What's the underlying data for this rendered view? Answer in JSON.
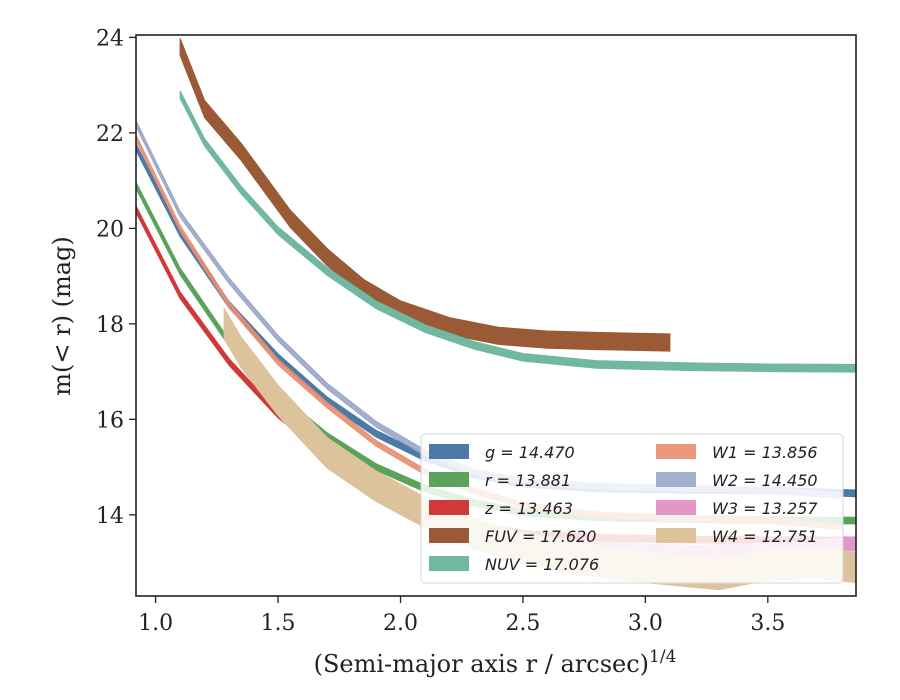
{
  "chart_data": {
    "type": "line",
    "xlabel": "(Semi-major axis r / arcsec)",
    "xlabel_sup": "1/4",
    "ylabel": "m(< r) (mag)",
    "xlim": [
      0.92,
      3.86
    ],
    "ylim": [
      24.05,
      12.3
    ],
    "y_inverted": true,
    "xticks": [
      "1.0",
      "1.5",
      "2.0",
      "2.5",
      "3.0",
      "3.5"
    ],
    "yticks": [
      "14",
      "16",
      "18",
      "20",
      "22",
      "24"
    ],
    "xtick_values": [
      1.0,
      1.5,
      2.0,
      2.5,
      3.0,
      3.5
    ],
    "ytick_values": [
      14,
      16,
      18,
      20,
      22,
      24
    ],
    "grid": false,
    "legend_position": "lower-right",
    "series": [
      {
        "key": "g",
        "label": "g = 14.470",
        "color": "#4c7aa8",
        "band": 0.07,
        "opacity": 1.0,
        "x": [
          0.92,
          1.1,
          1.3,
          1.5,
          1.7,
          1.9,
          2.1,
          2.3,
          2.5,
          2.8,
          3.2,
          3.5,
          3.86
        ],
        "y": [
          21.7,
          19.9,
          18.4,
          17.3,
          16.4,
          15.7,
          15.2,
          14.85,
          14.65,
          14.55,
          14.52,
          14.51,
          14.45
        ]
      },
      {
        "key": "r",
        "label": "r = 13.881",
        "color": "#5ba35a",
        "band": 0.07,
        "opacity": 1.0,
        "x": [
          0.92,
          1.1,
          1.3,
          1.5,
          1.7,
          1.9,
          2.1,
          2.3,
          2.5,
          2.8,
          3.2,
          3.5,
          3.86
        ],
        "y": [
          20.9,
          19.1,
          17.6,
          16.5,
          15.65,
          15.0,
          14.55,
          14.25,
          14.05,
          13.95,
          13.91,
          13.89,
          13.88
        ]
      },
      {
        "key": "z",
        "label": "z = 13.463",
        "color": "#d1383a",
        "band": 0.07,
        "opacity": 1.0,
        "x": [
          0.92,
          1.1,
          1.3,
          1.5,
          1.7,
          1.9,
          2.1,
          2.3,
          2.5,
          2.8,
          3.2,
          3.5,
          3.86
        ],
        "y": [
          20.4,
          18.6,
          17.2,
          16.1,
          15.3,
          14.65,
          14.15,
          13.8,
          13.6,
          13.52,
          13.48,
          13.47,
          13.46
        ]
      },
      {
        "key": "FUV",
        "label": "FUV = 17.620",
        "color": "#9a5a35",
        "band": 0.18,
        "opacity": 1.0,
        "x": [
          1.1,
          1.2,
          1.35,
          1.55,
          1.7,
          1.85,
          2.0,
          2.2,
          2.4,
          2.6,
          2.8,
          3.0,
          3.1
        ],
        "y": [
          23.8,
          22.5,
          21.6,
          20.2,
          19.4,
          18.75,
          18.3,
          17.95,
          17.75,
          17.67,
          17.64,
          17.62,
          17.61
        ]
      },
      {
        "key": "NUV",
        "label": "NUV = 17.076",
        "color": "#72b8a1",
        "band": 0.08,
        "opacity": 1.0,
        "x": [
          1.1,
          1.2,
          1.35,
          1.5,
          1.7,
          1.9,
          2.1,
          2.3,
          2.5,
          2.8,
          3.2,
          3.5,
          3.86
        ],
        "y": [
          22.8,
          21.8,
          20.8,
          19.95,
          19.1,
          18.4,
          17.9,
          17.55,
          17.3,
          17.15,
          17.1,
          17.08,
          17.07
        ]
      },
      {
        "key": "W1",
        "label": "W1 = 13.856",
        "color": "#e88e6f",
        "band": 0.06,
        "opacity": 0.9,
        "x": [
          0.92,
          1.1,
          1.3,
          1.5,
          1.7,
          1.9,
          2.1,
          2.3,
          2.5,
          2.8,
          3.2,
          3.5,
          3.8
        ],
        "y": [
          21.9,
          20.0,
          18.4,
          17.2,
          16.3,
          15.5,
          14.9,
          14.5,
          14.2,
          14.0,
          13.92,
          13.88,
          13.75
        ]
      },
      {
        "key": "W2",
        "label": "W2 = 14.450",
        "color": "#98a6c9",
        "band": 0.06,
        "opacity": 0.9,
        "x": [
          0.92,
          1.1,
          1.3,
          1.5,
          1.7,
          1.9,
          2.1,
          2.3,
          2.5,
          2.8,
          3.2,
          3.5,
          3.8
        ],
        "y": [
          22.2,
          20.3,
          18.9,
          17.7,
          16.7,
          15.9,
          15.3,
          14.9,
          14.7,
          14.6,
          14.55,
          14.52,
          14.4
        ]
      },
      {
        "key": "W3",
        "label": "W3 = 13.257",
        "color": "#e397c9",
        "band": 0.14,
        "opacity": 1.0,
        "x": [
          1.28,
          1.4,
          1.6,
          1.8,
          2.0,
          2.2,
          2.4,
          2.6,
          2.8,
          3.0,
          3.2,
          3.4,
          3.6,
          3.86
        ],
        "y": [
          17.9,
          17.0,
          15.9,
          15.0,
          14.3,
          13.85,
          13.55,
          13.4,
          13.3,
          13.25,
          13.22,
          13.25,
          13.3,
          13.4
        ]
      },
      {
        "key": "W4",
        "label": "W4 = 12.751",
        "color": "#dcc39c",
        "band": 0.32,
        "opacity": 1.0,
        "x": [
          1.28,
          1.35,
          1.5,
          1.7,
          1.9,
          2.1,
          2.3,
          2.5,
          2.7,
          2.9,
          3.1,
          3.3,
          3.5,
          3.7,
          3.86
        ],
        "y": [
          18.0,
          17.4,
          16.4,
          15.3,
          14.6,
          14.05,
          13.6,
          13.3,
          13.1,
          12.95,
          12.85,
          12.75,
          12.95,
          13.0,
          12.9
        ]
      }
    ],
    "legend_columns": [
      [
        "g",
        "r",
        "z",
        "FUV",
        "NUV"
      ],
      [
        "W1",
        "W2",
        "W3",
        "W4"
      ]
    ]
  }
}
